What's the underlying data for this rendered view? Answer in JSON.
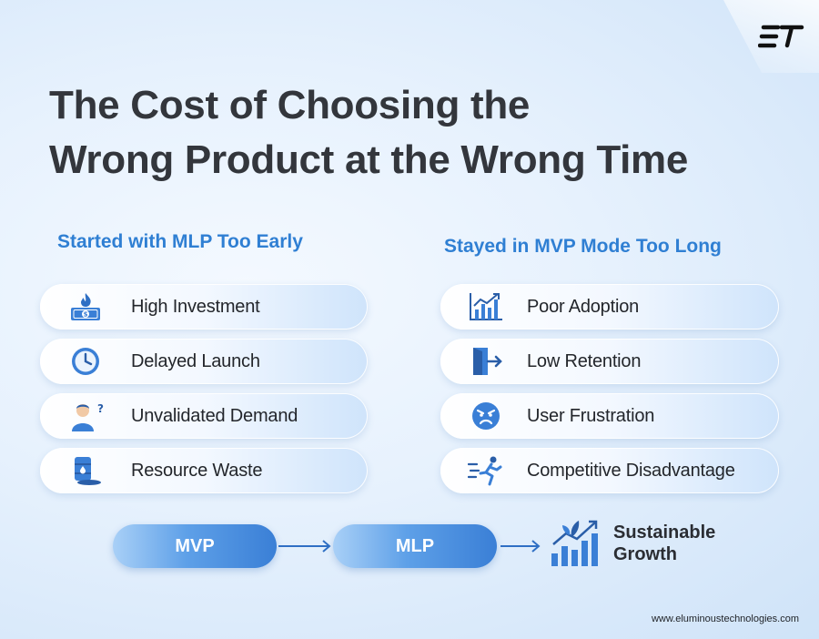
{
  "brand": {
    "logo_text": "ET",
    "website": "www.eluminoustechnologies.com"
  },
  "title": {
    "line1": "The Cost of Choosing the",
    "line2": "Wrong Product at the Wrong Time"
  },
  "left_column": {
    "heading": "Started with MLP Too Early",
    "items": [
      {
        "label": "High Investment",
        "icon": "money-fire-icon"
      },
      {
        "label": "Delayed Launch",
        "icon": "clock-icon"
      },
      {
        "label": "Unvalidated Demand",
        "icon": "confused-person-icon"
      },
      {
        "label": "Resource Waste",
        "icon": "oil-barrel-icon"
      }
    ]
  },
  "right_column": {
    "heading": "Stayed in MVP Mode Too Long",
    "items": [
      {
        "label": "Poor Adoption",
        "icon": "bar-chart-icon"
      },
      {
        "label": "Low Retention",
        "icon": "exit-door-icon"
      },
      {
        "label": "User Frustration",
        "icon": "angry-face-icon"
      },
      {
        "label": "Competitive Disadvantage",
        "icon": "running-person-icon"
      }
    ]
  },
  "flow": {
    "step1": "MVP",
    "step2": "MLP",
    "result_line1": "Sustainable",
    "result_line2": "Growth",
    "result_icon": "growth-chart-icon"
  },
  "colors": {
    "accent": "#2f7fd3",
    "title": "#33363c",
    "pill_blue": "#3a7fd6"
  }
}
